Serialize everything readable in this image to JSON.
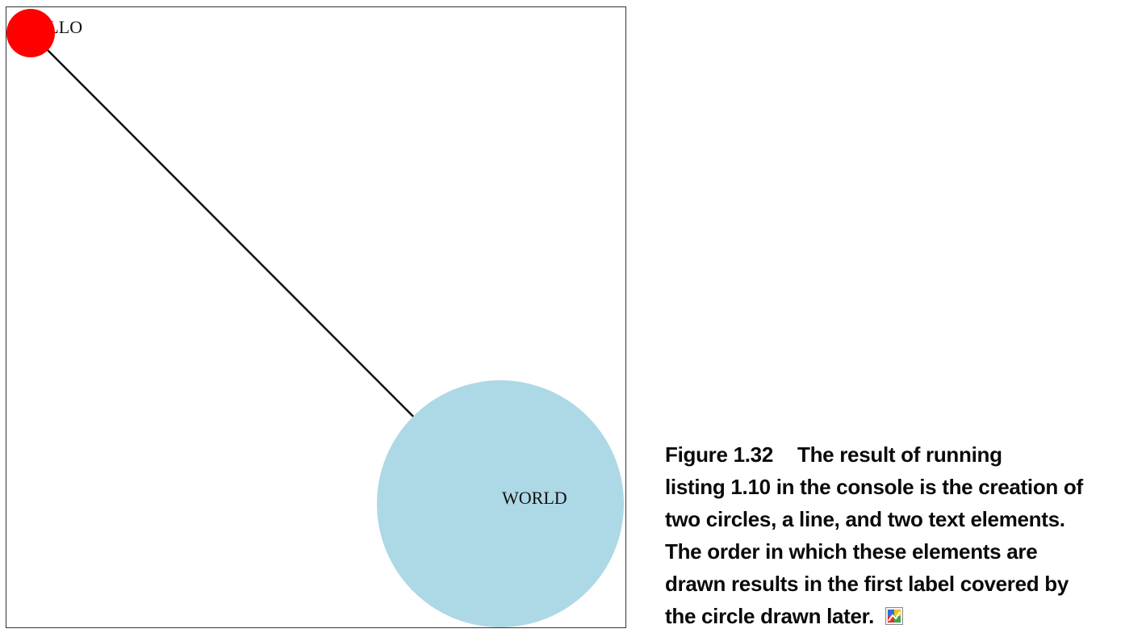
{
  "figure": {
    "label_hello": "HELLO",
    "label_world": "WORLD",
    "colors": {
      "small_circle": "#ff0000",
      "large_circle": "#add8e6",
      "line": "#111111",
      "frame": "#333333"
    }
  },
  "caption": {
    "figure_label": "Figure 1.32",
    "line1": "The result of running",
    "line2": "listing 1.10 in the console is the creation of",
    "line3": "two circles, a line, and two text elements.",
    "line4": "The order in which these elements are",
    "line5": "drawn results in the first label covered by",
    "line6": "the circle drawn later.",
    "icon": "colorful-image-icon"
  }
}
